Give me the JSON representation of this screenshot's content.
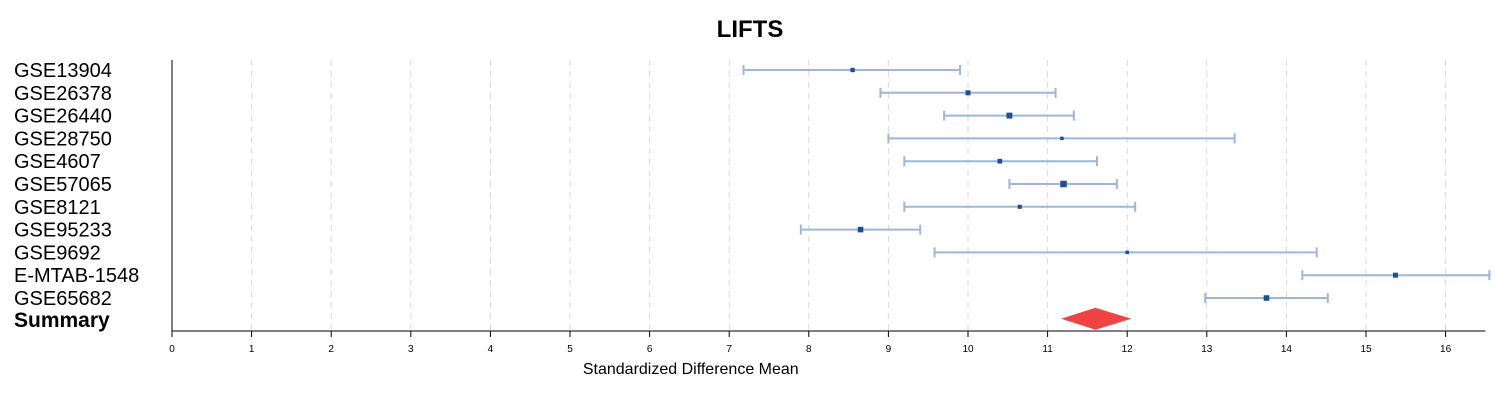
{
  "chart_data": {
    "type": "forest",
    "title": "LIFTS",
    "xlabel": "Standardized Difference Mean",
    "xlim": [
      0,
      16.5
    ],
    "xticks": [
      0,
      1,
      2,
      3,
      4,
      5,
      6,
      7,
      8,
      9,
      10,
      11,
      12,
      13,
      14,
      15,
      16
    ],
    "grid": "vertical dashed",
    "colors": {
      "ci": "#9db6d9",
      "point": "#1f4e99",
      "summary": "#f04444",
      "grid": "#d9d9d9"
    },
    "studies": [
      {
        "label": "GSE13904",
        "estimate": 8.55,
        "lower": 7.18,
        "upper": 9.9,
        "weight": 0.8
      },
      {
        "label": "GSE26378",
        "estimate": 10.0,
        "lower": 8.9,
        "upper": 11.1,
        "weight": 1.0
      },
      {
        "label": "GSE26440",
        "estimate": 10.52,
        "lower": 9.7,
        "upper": 11.33,
        "weight": 1.3
      },
      {
        "label": "GSE28750",
        "estimate": 11.18,
        "lower": 9.0,
        "upper": 13.35,
        "weight": 0.5
      },
      {
        "label": "GSE4607",
        "estimate": 10.4,
        "lower": 9.2,
        "upper": 11.62,
        "weight": 0.9
      },
      {
        "label": "GSE57065",
        "estimate": 11.2,
        "lower": 10.52,
        "upper": 11.87,
        "weight": 1.5
      },
      {
        "label": "GSE8121",
        "estimate": 10.65,
        "lower": 9.2,
        "upper": 12.1,
        "weight": 0.7
      },
      {
        "label": "GSE95233",
        "estimate": 8.65,
        "lower": 7.9,
        "upper": 9.4,
        "weight": 1.2
      },
      {
        "label": "GSE9692",
        "estimate": 12.0,
        "lower": 9.58,
        "upper": 14.38,
        "weight": 0.5
      },
      {
        "label": "E-MTAB-1548",
        "estimate": 15.37,
        "lower": 14.2,
        "upper": 16.55,
        "weight": 1.0
      },
      {
        "label": "GSE65682",
        "estimate": 13.75,
        "lower": 12.98,
        "upper": 14.52,
        "weight": 1.2
      }
    ],
    "summary": {
      "label": "Summary",
      "estimate": 11.6,
      "lower": 11.17,
      "upper": 12.05
    }
  }
}
